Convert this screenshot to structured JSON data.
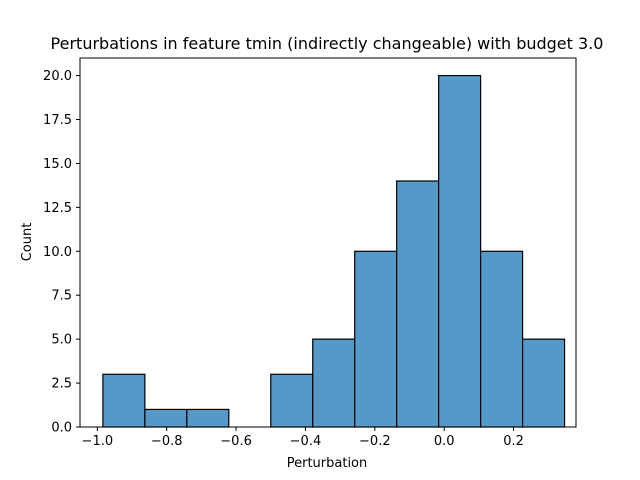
{
  "chart_data": {
    "type": "bar",
    "title": "Perturbations in feature tmin (indirectly changeable) with budget 3.0",
    "xlabel": "Perturbation",
    "ylabel": "Count",
    "xlim": [
      -1.05,
      0.38
    ],
    "ylim": [
      0,
      21
    ],
    "x_ticks": [
      -1.0,
      -0.8,
      -0.6,
      -0.4,
      -0.2,
      0.0,
      0.2
    ],
    "x_tick_labels": [
      "−1.0",
      "−0.8",
      "−0.6",
      "−0.4",
      "−0.2",
      "0.0",
      "0.2"
    ],
    "y_ticks": [
      0,
      2.5,
      5,
      7.5,
      10,
      12.5,
      15,
      17.5,
      20
    ],
    "y_tick_labels": [
      "0.0",
      "2.5",
      "5.0",
      "7.5",
      "10.0",
      "12.5",
      "15.0",
      "17.5",
      "20.0"
    ],
    "bins": [
      {
        "x0": -0.984,
        "x1": -0.863,
        "count": 3
      },
      {
        "x0": -0.863,
        "x1": -0.742,
        "count": 1
      },
      {
        "x0": -0.742,
        "x1": -0.621,
        "count": 1
      },
      {
        "x0": -0.621,
        "x1": -0.5,
        "count": 0
      },
      {
        "x0": -0.5,
        "x1": -0.379,
        "count": 3
      },
      {
        "x0": -0.379,
        "x1": -0.258,
        "count": 5
      },
      {
        "x0": -0.258,
        "x1": -0.137,
        "count": 10
      },
      {
        "x0": -0.137,
        "x1": -0.016,
        "count": 14
      },
      {
        "x0": -0.016,
        "x1": 0.105,
        "count": 20
      },
      {
        "x0": 0.105,
        "x1": 0.226,
        "count": 10
      },
      {
        "x0": 0.226,
        "x1": 0.347,
        "count": 5
      }
    ],
    "bar_color": "#5599c8",
    "edge_color": "#000000",
    "grid": false,
    "legend": "none"
  }
}
